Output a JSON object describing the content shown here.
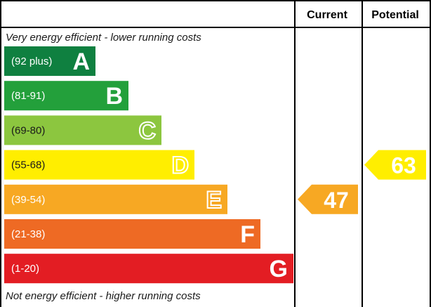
{
  "chart_data": {
    "type": "bar",
    "headers": {
      "current": "Current",
      "potential": "Potential"
    },
    "top_note": "Very energy efficient - lower running costs",
    "bottom_note": "Not energy efficient - higher running costs",
    "bands": [
      {
        "letter": "A",
        "range": "(92 plus)",
        "color": "#0f8040"
      },
      {
        "letter": "B",
        "range": "(81-91)",
        "color": "#23a03b"
      },
      {
        "letter": "C",
        "range": "(69-80)",
        "color": "#8cc63f"
      },
      {
        "letter": "D",
        "range": "(55-68)",
        "color": "#ffee00"
      },
      {
        "letter": "E",
        "range": "(39-54)",
        "color": "#f7a823"
      },
      {
        "letter": "F",
        "range": "(21-38)",
        "color": "#ee6a24"
      },
      {
        "letter": "G",
        "range": "(1-20)",
        "color": "#e31d23"
      }
    ],
    "current": {
      "value": "47",
      "band": "E",
      "color": "#f7a823"
    },
    "potential": {
      "value": "63",
      "band": "D",
      "color": "#ffee00"
    }
  }
}
